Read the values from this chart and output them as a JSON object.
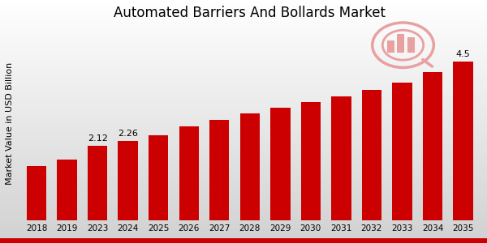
{
  "title": "Automated Barriers And Bollards Market",
  "ylabel": "Market Value in USD Billion",
  "categories": [
    "2018",
    "2019",
    "2023",
    "2024",
    "2025",
    "2026",
    "2027",
    "2028",
    "2029",
    "2030",
    "2031",
    "2032",
    "2033",
    "2034",
    "2035"
  ],
  "values": [
    1.55,
    1.72,
    2.12,
    2.26,
    2.42,
    2.65,
    2.85,
    3.02,
    3.18,
    3.35,
    3.52,
    3.7,
    3.9,
    4.2,
    4.5
  ],
  "bar_color": "#cc0000",
  "annotated": {
    "2023": "2.12",
    "2024": "2.26",
    "2035": "4.5"
  },
  "bg_top": "#ffffff",
  "bg_bottom": "#d0d0d0",
  "bottom_bar_color": "#cc0000",
  "ylim": [
    0,
    5.5
  ],
  "title_fontsize": 12,
  "tick_fontsize": 7.5,
  "ylabel_fontsize": 8,
  "annotation_fontsize": 8,
  "bar_width": 0.65
}
